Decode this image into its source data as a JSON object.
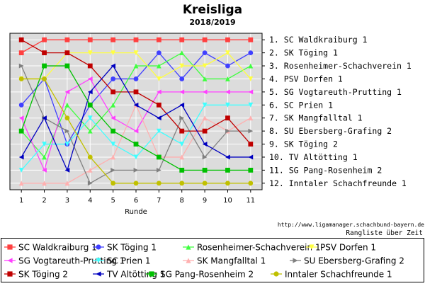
{
  "chart_data": {
    "type": "line",
    "title": "Kreisliga",
    "subtitle": "2018/2019",
    "xlabel": "Runde",
    "ylabel": "",
    "x": [
      1,
      2,
      3,
      4,
      5,
      6,
      7,
      8,
      9,
      10,
      11
    ],
    "ylim": [
      1,
      12
    ],
    "y_inverted": true,
    "grid": true,
    "rank_labels": [
      "1. SC Waldkraiburg 1",
      "2. SK Töging 1",
      "3. Rosenheimer-Schachverein 1",
      "4. PSV Dorfen 1",
      "5. SG Vogtareuth-Prutting 1",
      "6. SC Prien 1",
      "7. SK Mangfalltal 1",
      "8. SU Ebersberg-Grafing 2",
      "9. SK Töging 2",
      "10. TV Altötting 1",
      "11. SG Pang-Rosenheim 2",
      "12. Inntaler Schachfreunde 1"
    ],
    "source": "http://www.ligamanager.schachbund-bayern.de",
    "source_caption": "Rangliste über Zeit",
    "series": [
      {
        "name": "SC Waldkraiburg 1",
        "color": "#ff4040",
        "marker": "square",
        "values": [
          2,
          1,
          1,
          1,
          1,
          1,
          1,
          1,
          1,
          1,
          1
        ]
      },
      {
        "name": "SK Töging 1",
        "color": "#4040ff",
        "marker": "circle",
        "values": [
          6,
          4,
          9,
          6,
          4,
          4,
          2,
          4,
          2,
          3,
          2
        ]
      },
      {
        "name": "Rosenheimer-Schachverein 1",
        "color": "#40ff40",
        "marker": "triangle-up",
        "values": [
          8,
          10,
          6,
          8,
          6,
          3,
          3,
          2,
          4,
          4,
          3
        ]
      },
      {
        "name": "PSV Dorfen 1",
        "color": "#ffff40",
        "marker": "triangle-down",
        "values": [
          4,
          4,
          2,
          2,
          2,
          2,
          4,
          3,
          3,
          2,
          4
        ]
      },
      {
        "name": "SG Vogtareuth-Prutting 1",
        "color": "#ff40ff",
        "marker": "triangle-left",
        "values": [
          7,
          11,
          5,
          4,
          7,
          8,
          5,
          5,
          5,
          5,
          5
        ]
      },
      {
        "name": "SC Prien 1",
        "color": "#40ffff",
        "marker": "triangle-down",
        "values": [
          11,
          9,
          9,
          7,
          9,
          10,
          8,
          9,
          6,
          6,
          6
        ]
      },
      {
        "name": "SK Mangfalltal 1",
        "color": "#ffb0b0",
        "marker": "triangle-up",
        "values": [
          12,
          12,
          12,
          11,
          10,
          6,
          10,
          10,
          7,
          8,
          7
        ]
      },
      {
        "name": "SU Ebersberg-Grafing 2",
        "color": "#808080",
        "marker": "triangle-right",
        "values": [
          3,
          7,
          8,
          12,
          11,
          11,
          11,
          7,
          10,
          8,
          8
        ]
      },
      {
        "name": "SK Töging 2",
        "color": "#c00000",
        "marker": "square",
        "values": [
          1,
          2,
          2,
          3,
          5,
          5,
          6,
          8,
          8,
          7,
          9
        ]
      },
      {
        "name": "TV Altötting 1",
        "color": "#0000c0",
        "marker": "triangle-left",
        "values": [
          10,
          7,
          11,
          5,
          3,
          6,
          7,
          6,
          9,
          10,
          10
        ]
      },
      {
        "name": "SG Pang-Rosenheim 2",
        "color": "#00c000",
        "marker": "square",
        "values": [
          8,
          3,
          3,
          6,
          8,
          9,
          10,
          11,
          11,
          11,
          11
        ]
      },
      {
        "name": "Inntaler Schachfreunde 1",
        "color": "#c0c000",
        "marker": "circle",
        "values": [
          4,
          4,
          7,
          10,
          12,
          12,
          12,
          12,
          12,
          12,
          12
        ]
      }
    ]
  }
}
